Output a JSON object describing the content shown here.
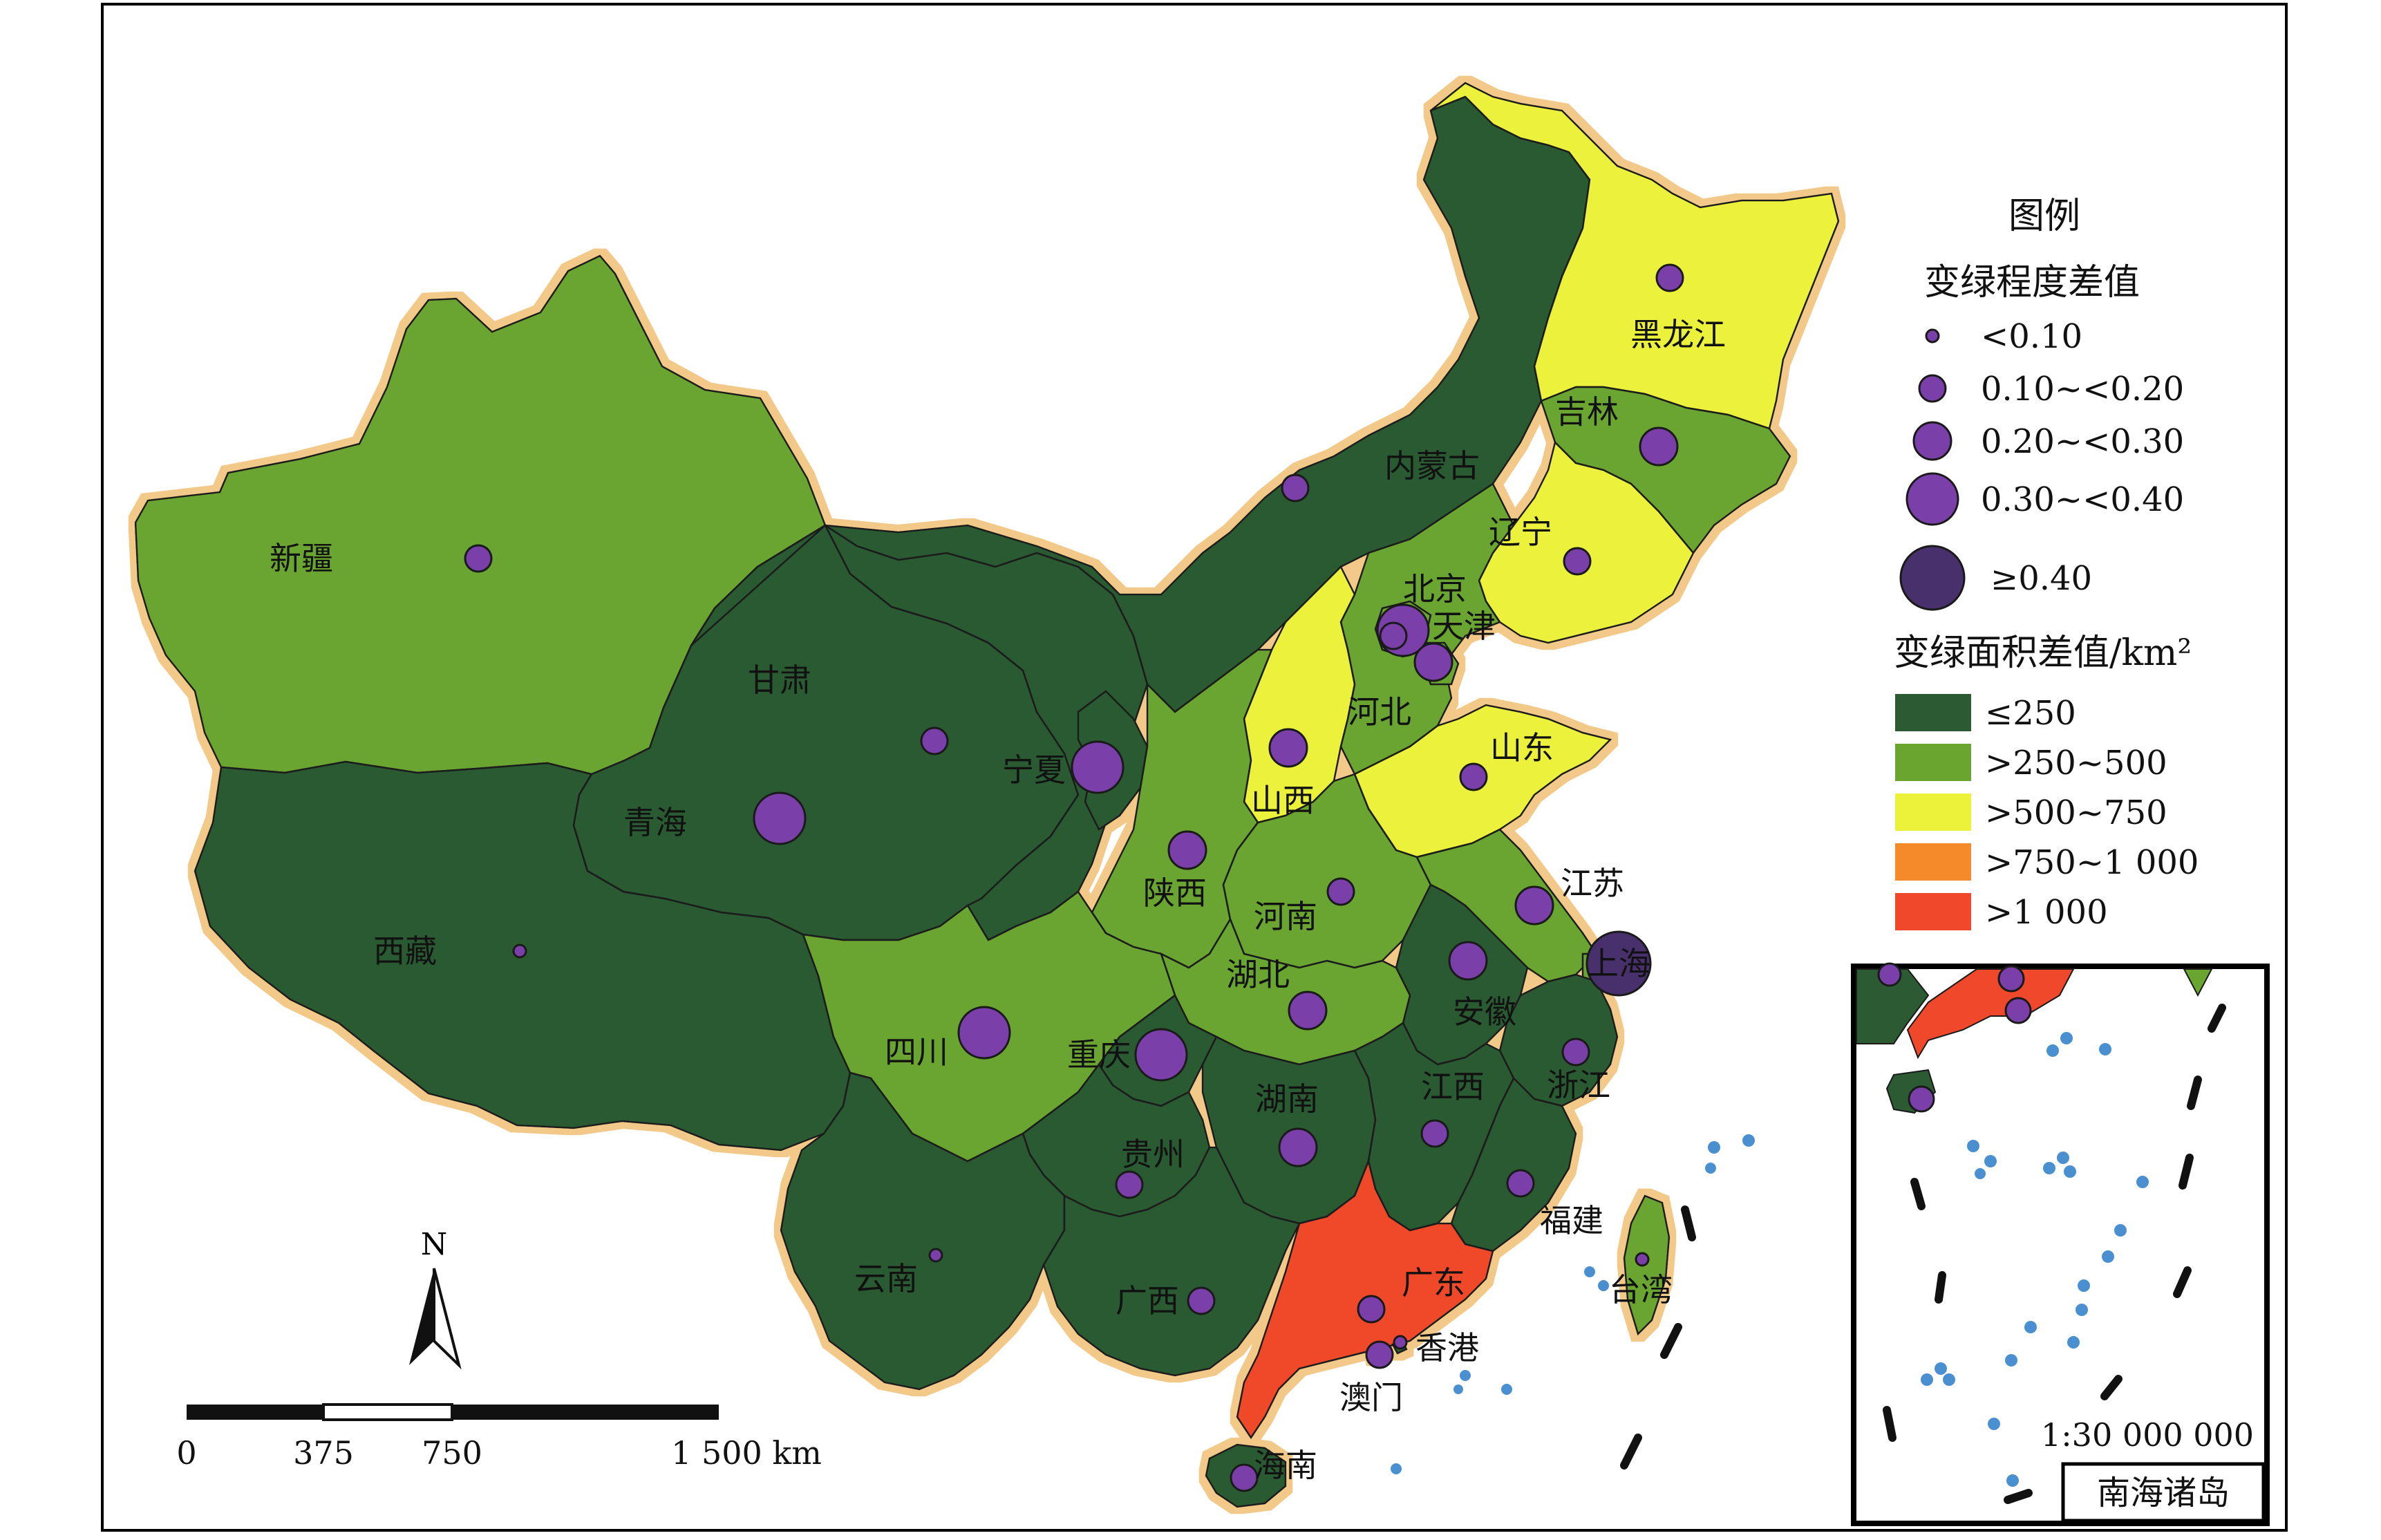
{
  "colors": {
    "class_le250": "#2b5a33",
    "class_250_500": "#6aa530",
    "class_500_750": "#ecf23a",
    "class_750_1000": "#f58a2a",
    "class_gt1000": "#f0482b",
    "circle_fill": "#7a3fa8",
    "circle_fill_large": "#47306b",
    "coast_glow": "#f3c98a",
    "sea_islands": "#4a90d0"
  },
  "legend": {
    "title": "图例",
    "circle_title": "变绿程度差值",
    "circle_items": [
      {
        "label": "<0.10",
        "size": "xs"
      },
      {
        "label": "0.10~<0.20",
        "size": "s"
      },
      {
        "label": "0.20~<0.30",
        "size": "m"
      },
      {
        "label": "0.30~<0.40",
        "size": "l"
      },
      {
        "label": "≥0.40",
        "size": "xl"
      }
    ],
    "area_title": "变绿面积差值/km²",
    "area_items": [
      {
        "label": "≤250",
        "class": "class_le250"
      },
      {
        "label": ">250~500",
        "class": "class_250_500"
      },
      {
        "label": ">500~750",
        "class": "class_500_750"
      },
      {
        "label": ">750~1 000",
        "class": "class_750_1000"
      },
      {
        "label": ">1 000",
        "class": "class_gt1000"
      }
    ]
  },
  "north_arrow": "N",
  "scale_bar": {
    "ticks": [
      "0",
      "375",
      "750",
      "1 500 km"
    ]
  },
  "inset": {
    "scale": "1:30 000 000",
    "title": "南海诸岛"
  },
  "provinces": [
    {
      "name": "新疆",
      "class": "class_250_500",
      "circle": "s"
    },
    {
      "name": "西藏",
      "class": "class_le250",
      "circle": "xs"
    },
    {
      "name": "青海",
      "class": "class_le250",
      "circle": "l"
    },
    {
      "name": "甘肃",
      "class": "class_le250",
      "circle": "s"
    },
    {
      "name": "内蒙古",
      "class": "class_le250",
      "circle": "s"
    },
    {
      "name": "黑龙江",
      "class": "class_500_750",
      "circle": "s"
    },
    {
      "name": "吉林",
      "class": "class_250_500",
      "circle": "m"
    },
    {
      "name": "辽宁",
      "class": "class_500_750",
      "circle": "s"
    },
    {
      "name": "北京",
      "class": "class_250_500",
      "circle": "l"
    },
    {
      "name": "天津",
      "class": "class_250_500",
      "circle": "m"
    },
    {
      "name": "河北",
      "class": "class_250_500",
      "circle": "s"
    },
    {
      "name": "山西",
      "class": "class_500_750",
      "circle": "m"
    },
    {
      "name": "山东",
      "class": "class_500_750",
      "circle": "s"
    },
    {
      "name": "宁夏",
      "class": "class_le250",
      "circle": "l"
    },
    {
      "name": "陕西",
      "class": "class_250_500",
      "circle": "m"
    },
    {
      "name": "河南",
      "class": "class_250_500",
      "circle": "s"
    },
    {
      "name": "江苏",
      "class": "class_250_500",
      "circle": "m"
    },
    {
      "name": "上海",
      "class": "class_250_500",
      "circle": "xl"
    },
    {
      "name": "安徽",
      "class": "class_le250",
      "circle": "m"
    },
    {
      "name": "湖北",
      "class": "class_250_500",
      "circle": "m"
    },
    {
      "name": "四川",
      "class": "class_250_500",
      "circle": "l"
    },
    {
      "name": "重庆",
      "class": "class_le250",
      "circle": "l"
    },
    {
      "name": "浙江",
      "class": "class_le250",
      "circle": "s"
    },
    {
      "name": "湖南",
      "class": "class_le250",
      "circle": "m"
    },
    {
      "name": "江西",
      "class": "class_le250",
      "circle": "s"
    },
    {
      "name": "贵州",
      "class": "class_le250",
      "circle": "s"
    },
    {
      "name": "福建",
      "class": "class_le250",
      "circle": "s"
    },
    {
      "name": "云南",
      "class": "class_le250",
      "circle": "xs"
    },
    {
      "name": "广西",
      "class": "class_le250",
      "circle": "s"
    },
    {
      "name": "广东",
      "class": "class_gt1000",
      "circle": "s"
    },
    {
      "name": "台湾",
      "class": "class_250_500",
      "circle": "xs"
    },
    {
      "name": "香港",
      "class": "class_le250",
      "circle": "xs"
    },
    {
      "name": "澳门",
      "class": "class_le250",
      "circle": "s"
    },
    {
      "name": "海南",
      "class": "class_le250",
      "circle": "s"
    }
  ]
}
